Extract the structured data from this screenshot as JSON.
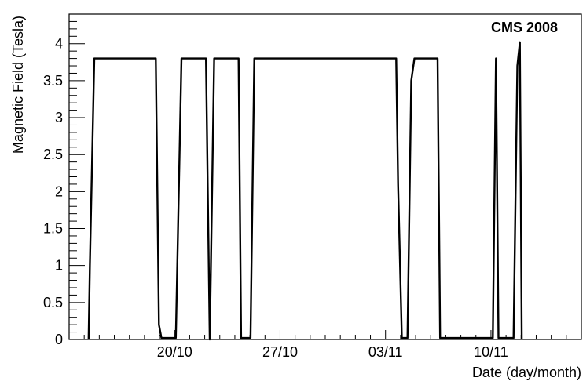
{
  "chart_data": {
    "type": "line",
    "title": "",
    "annotation": "CMS 2008",
    "xlabel": "Date (day/month)",
    "ylabel": "Magnetic Field (Tesla)",
    "x_axis_type": "date",
    "xlim": [
      "2008-10-13T00:00",
      "2008-11-16T00:00"
    ],
    "ylim": [
      0,
      4.4
    ],
    "grid": false,
    "legend": "none",
    "line_color": "#000000",
    "x_ticks": [
      {
        "label": "20/10",
        "date": "2008-10-20T00:00"
      },
      {
        "label": "27/10",
        "date": "2008-10-27T00:00"
      },
      {
        "label": "03/11",
        "date": "2008-11-03T00:00"
      },
      {
        "label": "10/11",
        "date": "2008-11-10T00:00"
      }
    ],
    "y_ticks": [
      {
        "label": "0",
        "value": 0
      },
      {
        "label": "0.5",
        "value": 0.5
      },
      {
        "label": "1",
        "value": 1
      },
      {
        "label": "1.5",
        "value": 1.5
      },
      {
        "label": "2",
        "value": 2
      },
      {
        "label": "2.5",
        "value": 2.5
      },
      {
        "label": "3",
        "value": 3
      },
      {
        "label": "3.5",
        "value": 3.5
      },
      {
        "label": "4",
        "value": 4
      }
    ],
    "series": [
      {
        "points": [
          {
            "x": "2008-10-14T07:00",
            "y": 0
          },
          {
            "x": "2008-10-14T09:00",
            "y": 1.0
          },
          {
            "x": "2008-10-14T14:00",
            "y": 3.0
          },
          {
            "x": "2008-10-14T16:00",
            "y": 3.8
          },
          {
            "x": "2008-10-18T18:00",
            "y": 3.8
          },
          {
            "x": "2008-10-18T23:00",
            "y": 0.2
          },
          {
            "x": "2008-10-19T03:00",
            "y": 0.02
          },
          {
            "x": "2008-10-20T02:00",
            "y": 0.02
          },
          {
            "x": "2008-10-20T11:00",
            "y": 3.8
          },
          {
            "x": "2008-10-22T02:00",
            "y": 3.8
          },
          {
            "x": "2008-10-22T08:00",
            "y": 0
          },
          {
            "x": "2008-10-22T15:00",
            "y": 3.8
          },
          {
            "x": "2008-10-24T06:00",
            "y": 3.8
          },
          {
            "x": "2008-10-24T10:00",
            "y": 0.02
          },
          {
            "x": "2008-10-25T01:00",
            "y": 0.02
          },
          {
            "x": "2008-10-25T07:00",
            "y": 3.8
          },
          {
            "x": "2008-11-03T17:00",
            "y": 3.8
          },
          {
            "x": "2008-11-03T20:00",
            "y": 2.1
          },
          {
            "x": "2008-11-04T02:00",
            "y": 0.02
          },
          {
            "x": "2008-11-04T11:00",
            "y": 0.02
          },
          {
            "x": "2008-11-04T17:00",
            "y": 3.5
          },
          {
            "x": "2008-11-04T22:00",
            "y": 3.8
          },
          {
            "x": "2008-11-06T11:00",
            "y": 3.8
          },
          {
            "x": "2008-11-06T15:00",
            "y": 0.02
          },
          {
            "x": "2008-11-10T03:00",
            "y": 0.02
          },
          {
            "x": "2008-11-10T08:00",
            "y": 3.8
          },
          {
            "x": "2008-11-10T12:00",
            "y": 0.02
          },
          {
            "x": "2008-11-11T12:00",
            "y": 0.02
          },
          {
            "x": "2008-11-11T18:00",
            "y": 3.7
          },
          {
            "x": "2008-11-11T22:00",
            "y": 4.02
          },
          {
            "x": "2008-11-12T01:00",
            "y": 0
          }
        ]
      }
    ]
  }
}
